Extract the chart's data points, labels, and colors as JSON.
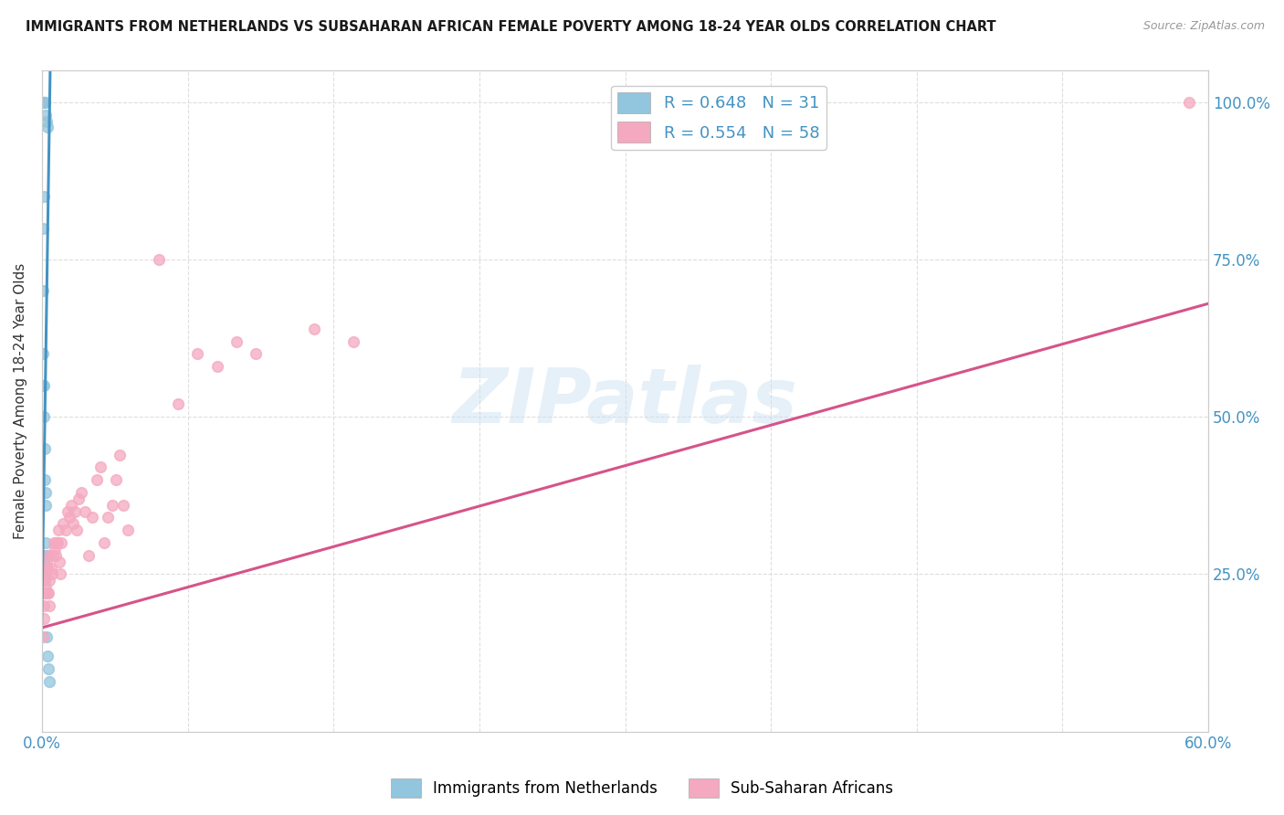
{
  "title": "IMMIGRANTS FROM NETHERLANDS VS SUBSAHARAN AFRICAN FEMALE POVERTY AMONG 18-24 YEAR OLDS CORRELATION CHART",
  "source": "Source: ZipAtlas.com",
  "ylabel": "Female Poverty Among 18-24 Year Olds",
  "ylabel_right_ticks": [
    "100.0%",
    "75.0%",
    "50.0%",
    "25.0%"
  ],
  "ylabel_right_vals": [
    1.0,
    0.75,
    0.5,
    0.25
  ],
  "watermark": "ZIPatlas",
  "legend_blue_r": "R = 0.648",
  "legend_blue_n": "N = 31",
  "legend_pink_r": "R = 0.554",
  "legend_pink_n": "N = 58",
  "legend_label_blue": "Immigrants from Netherlands",
  "legend_label_pink": "Sub-Saharan Africans",
  "blue_color": "#92c5de",
  "pink_color": "#f4a9c0",
  "blue_line_color": "#4393c3",
  "pink_line_color": "#d6538a",
  "blue_scatter_x": [
    0.0002,
    0.0008,
    0.0012,
    0.0016,
    0.002,
    0.0024,
    0.0028,
    0.001,
    0.0006,
    0.0004,
    0.0003,
    0.0007,
    0.0009,
    0.0011,
    0.0013,
    0.0015,
    0.0017,
    0.0019,
    0.0021,
    0.0005,
    0.0008,
    0.001,
    0.0012,
    0.0014,
    0.0016,
    0.0018,
    0.0022,
    0.0025,
    0.003,
    0.0035,
    0.004
  ],
  "blue_scatter_y": [
    1.0,
    1.0,
    1.0,
    1.0,
    0.98,
    0.97,
    0.96,
    0.85,
    0.8,
    0.7,
    0.6,
    0.55,
    0.5,
    0.55,
    0.45,
    0.4,
    0.38,
    0.36,
    0.3,
    0.28,
    0.27,
    0.26,
    0.25,
    0.25,
    0.24,
    0.22,
    0.28,
    0.15,
    0.12,
    0.1,
    0.08
  ],
  "pink_scatter_x": [
    0.0005,
    0.0008,
    0.001,
    0.0012,
    0.0015,
    0.0018,
    0.002,
    0.0022,
    0.0025,
    0.0028,
    0.003,
    0.0032,
    0.0035,
    0.0038,
    0.004,
    0.0045,
    0.005,
    0.0055,
    0.006,
    0.0065,
    0.007,
    0.0075,
    0.008,
    0.0085,
    0.009,
    0.0095,
    0.01,
    0.011,
    0.012,
    0.013,
    0.014,
    0.015,
    0.016,
    0.017,
    0.018,
    0.019,
    0.02,
    0.022,
    0.024,
    0.026,
    0.028,
    0.03,
    0.032,
    0.034,
    0.036,
    0.038,
    0.04,
    0.042,
    0.044,
    0.06,
    0.07,
    0.08,
    0.09,
    0.1,
    0.11,
    0.14,
    0.16,
    0.59
  ],
  "pink_scatter_y": [
    0.15,
    0.18,
    0.2,
    0.22,
    0.24,
    0.23,
    0.25,
    0.26,
    0.27,
    0.22,
    0.26,
    0.28,
    0.22,
    0.2,
    0.24,
    0.26,
    0.25,
    0.28,
    0.3,
    0.29,
    0.28,
    0.3,
    0.3,
    0.32,
    0.27,
    0.25,
    0.3,
    0.33,
    0.32,
    0.35,
    0.34,
    0.36,
    0.33,
    0.35,
    0.32,
    0.37,
    0.38,
    0.35,
    0.28,
    0.34,
    0.4,
    0.42,
    0.3,
    0.34,
    0.36,
    0.4,
    0.44,
    0.36,
    0.32,
    0.75,
    0.52,
    0.6,
    0.58,
    0.62,
    0.6,
    0.64,
    0.62,
    1.0
  ],
  "blue_trend_x": [
    -0.0005,
    0.0042
  ],
  "blue_trend_y": [
    0.1,
    1.05
  ],
  "pink_trend_x": [
    0.0,
    0.6
  ],
  "pink_trend_y": [
    0.165,
    0.68
  ],
  "xlim": [
    0.0,
    0.6
  ],
  "ylim": [
    0.0,
    1.05
  ],
  "x_ticks": [
    0.0,
    0.075,
    0.15,
    0.225,
    0.3,
    0.375,
    0.45,
    0.525,
    0.6
  ],
  "x_tick_labels": [
    "0.0%",
    "",
    "",
    "",
    "",
    "",
    "",
    "",
    "60.0%"
  ],
  "background_color": "#ffffff",
  "grid_color": "#dedede",
  "text_color_blue": "#4393c3",
  "text_color_dark": "#333333"
}
